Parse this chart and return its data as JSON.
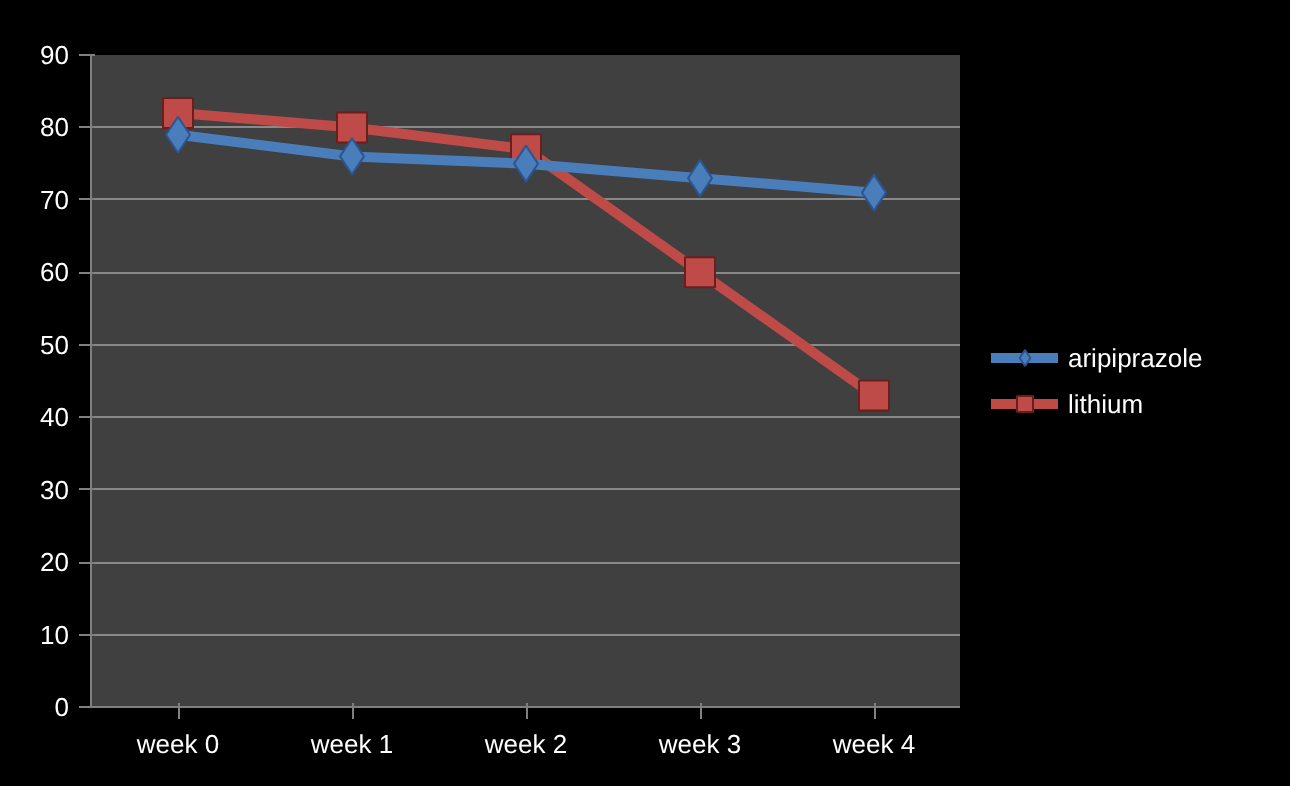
{
  "chart_data": {
    "type": "line",
    "categories": [
      "week 0",
      "week 1",
      "week 2",
      "week 3",
      "week 4"
    ],
    "series": [
      {
        "name": "aripiprazole",
        "color": "#4a7ebb",
        "marker": "diamond",
        "values": [
          79,
          76,
          75,
          73,
          71
        ]
      },
      {
        "name": "lithium",
        "color": "#be4b48",
        "marker": "square",
        "values": [
          82,
          80,
          77,
          60,
          43
        ]
      }
    ],
    "ylim": [
      0,
      90
    ],
    "yticks": [
      0,
      10,
      20,
      30,
      40,
      50,
      60,
      70,
      80,
      90
    ],
    "grid": "y",
    "legend": "right",
    "line_style": "solid"
  }
}
